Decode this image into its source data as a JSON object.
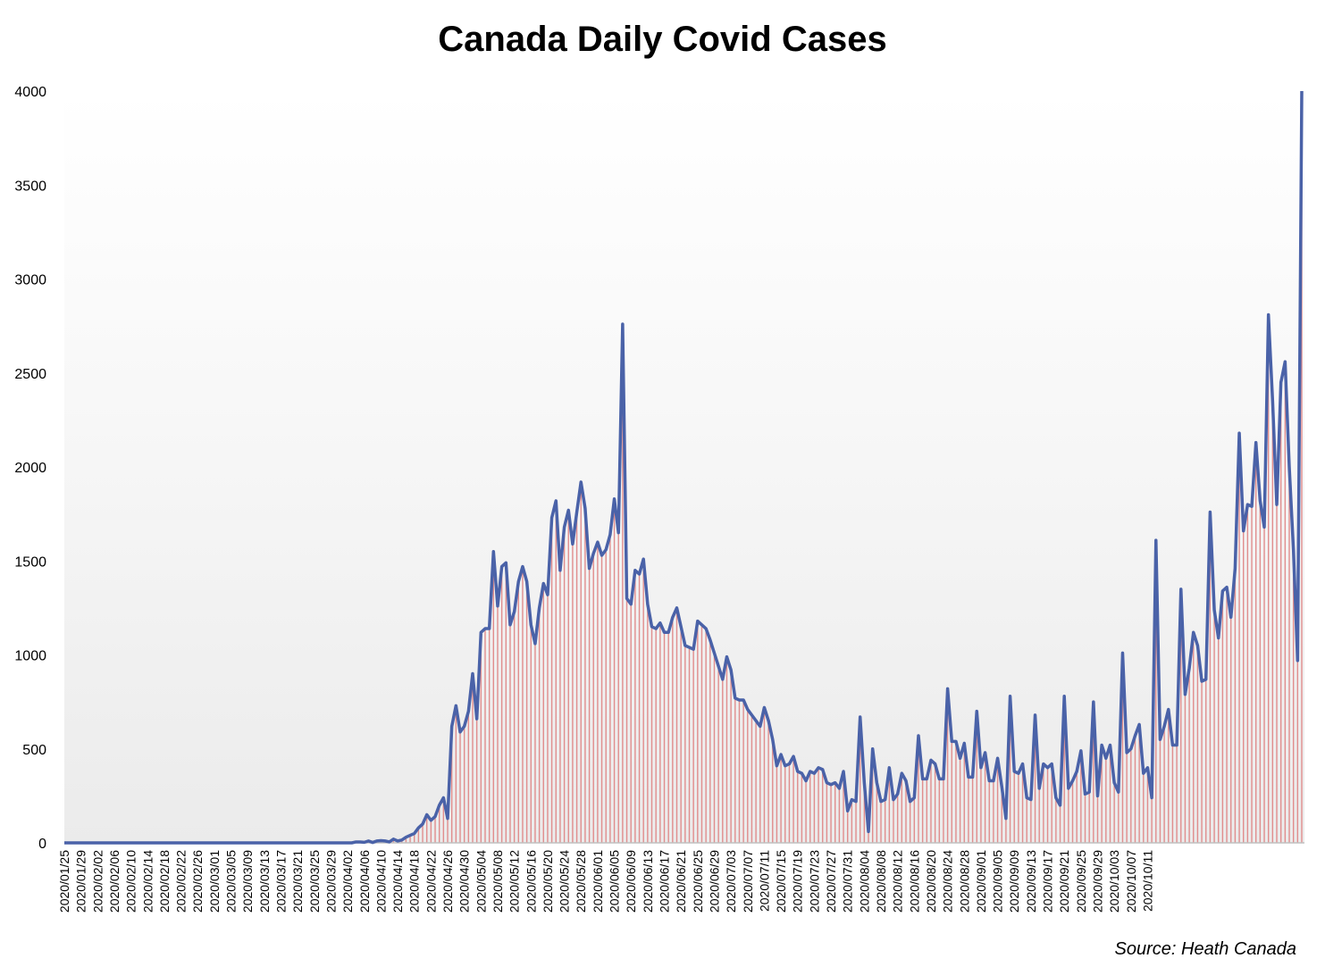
{
  "chart_data": {
    "type": "area",
    "title": "Canada Daily Covid Cases",
    "source": "Source: Heath Canada",
    "start_date": "2020/01/25",
    "ylim": [
      0,
      4000
    ],
    "y_ticks": [
      "0",
      "500",
      "1000",
      "1500",
      "2000",
      "2500",
      "3000",
      "3500",
      "4000"
    ],
    "x_tick_labels": [
      "2020/01/25",
      "2020/01/29",
      "2020/02/02",
      "2020/02/06",
      "2020/02/10",
      "2020/02/14",
      "2020/02/18",
      "2020/02/22",
      "2020/02/26",
      "2020/03/01",
      "2020/03/05",
      "2020/03/09",
      "2020/03/13",
      "2020/03/17",
      "2020/03/21",
      "2020/03/25",
      "2020/03/29",
      "2020/04/02",
      "2020/04/06",
      "2020/04/10",
      "2020/04/14",
      "2020/04/18",
      "2020/04/22",
      "2020/04/26",
      "2020/04/30",
      "2020/05/04",
      "2020/05/08",
      "2020/05/12",
      "2020/05/16",
      "2020/05/20",
      "2020/05/24",
      "2020/05/28",
      "2020/06/01",
      "2020/06/05",
      "2020/06/09",
      "2020/06/13",
      "2020/06/17",
      "2020/06/21",
      "2020/06/25",
      "2020/06/29",
      "2020/07/03",
      "2020/07/07",
      "2020/07/11",
      "2020/07/15",
      "2020/07/19",
      "2020/07/23",
      "2020/07/27",
      "2020/07/31",
      "2020/08/04",
      "2020/08/08",
      "2020/08/12",
      "2020/08/16",
      "2020/08/20",
      "2020/08/24",
      "2020/08/28",
      "2020/09/01",
      "2020/09/05",
      "2020/09/09",
      "2020/09/13",
      "2020/09/17",
      "2020/09/21",
      "2020/09/25",
      "2020/09/29",
      "2020/10/03",
      "2020/10/07",
      "2020/10/11"
    ],
    "series": [
      {
        "name": "",
        "values": [
          0,
          0,
          0,
          0,
          0,
          0,
          0,
          0,
          0,
          0,
          0,
          0,
          0,
          0,
          0,
          0,
          0,
          0,
          0,
          0,
          0,
          0,
          0,
          0,
          0,
          0,
          0,
          0,
          0,
          0,
          0,
          0,
          0,
          0,
          0,
          0,
          0,
          0,
          0,
          0,
          0,
          0,
          0,
          0,
          0,
          0,
          0,
          0,
          0,
          0,
          0,
          0,
          0,
          0,
          0,
          0,
          0,
          0,
          0,
          0,
          0,
          0,
          0,
          0,
          0,
          0,
          0,
          0,
          0,
          0,
          5,
          5,
          3,
          10,
          2,
          10,
          12,
          10,
          5,
          20,
          10,
          15,
          30,
          40,
          50,
          80,
          100,
          150,
          120,
          140,
          200,
          240,
          130,
          620,
          730,
          590,
          620,
          700,
          900,
          660,
          1120,
          1140,
          1140,
          1550,
          1260,
          1470,
          1490,
          1160,
          1230,
          1390,
          1470,
          1390,
          1160,
          1060,
          1250,
          1380,
          1320,
          1730,
          1820,
          1450,
          1680,
          1770,
          1590,
          1760,
          1920,
          1780,
          1460,
          1540,
          1600,
          1530,
          1560,
          1640,
          1830,
          1650,
          2760,
          1300,
          1270,
          1450,
          1430,
          1510,
          1270,
          1150,
          1140,
          1170,
          1120,
          1120,
          1200,
          1250,
          1150,
          1050,
          1040,
          1030,
          1180,
          1160,
          1140,
          1080,
          1010,
          940,
          870,
          990,
          920,
          770,
          760,
          760,
          710,
          680,
          650,
          620,
          720,
          650,
          550,
          410,
          470,
          410,
          420,
          460,
          380,
          370,
          330,
          380,
          370,
          400,
          390,
          320,
          310,
          320,
          290,
          380,
          170,
          230,
          220,
          670,
          320,
          60,
          500,
          320,
          220,
          230,
          400,
          230,
          260,
          370,
          330,
          220,
          240,
          570,
          340,
          340,
          440,
          420,
          340,
          340,
          820,
          540,
          540,
          450,
          530,
          350,
          350,
          700,
          400,
          480,
          330,
          330,
          450,
          300,
          130,
          780,
          380,
          370,
          420,
          240,
          230,
          680,
          290,
          420,
          400,
          420,
          240,
          200,
          780,
          290,
          330,
          380,
          490,
          260,
          270,
          750,
          250,
          520,
          450,
          520,
          320,
          270,
          1010,
          480,
          500,
          570,
          630,
          370,
          400,
          240,
          1610,
          550,
          620,
          710,
          520,
          520,
          1350,
          790,
          930,
          1120,
          1050,
          860,
          870,
          1760,
          1240,
          1090,
          1340,
          1360,
          1200,
          1460,
          2180,
          1660,
          1800,
          1790,
          2130,
          1820,
          1680,
          2810,
          2350,
          1800,
          2450,
          2560,
          2000,
          1560,
          970,
          4000
        ]
      }
    ],
    "colors": {
      "line": "#4a62a8",
      "fill_line": "#e08d8d",
      "axis": "#c0c0c0"
    }
  }
}
